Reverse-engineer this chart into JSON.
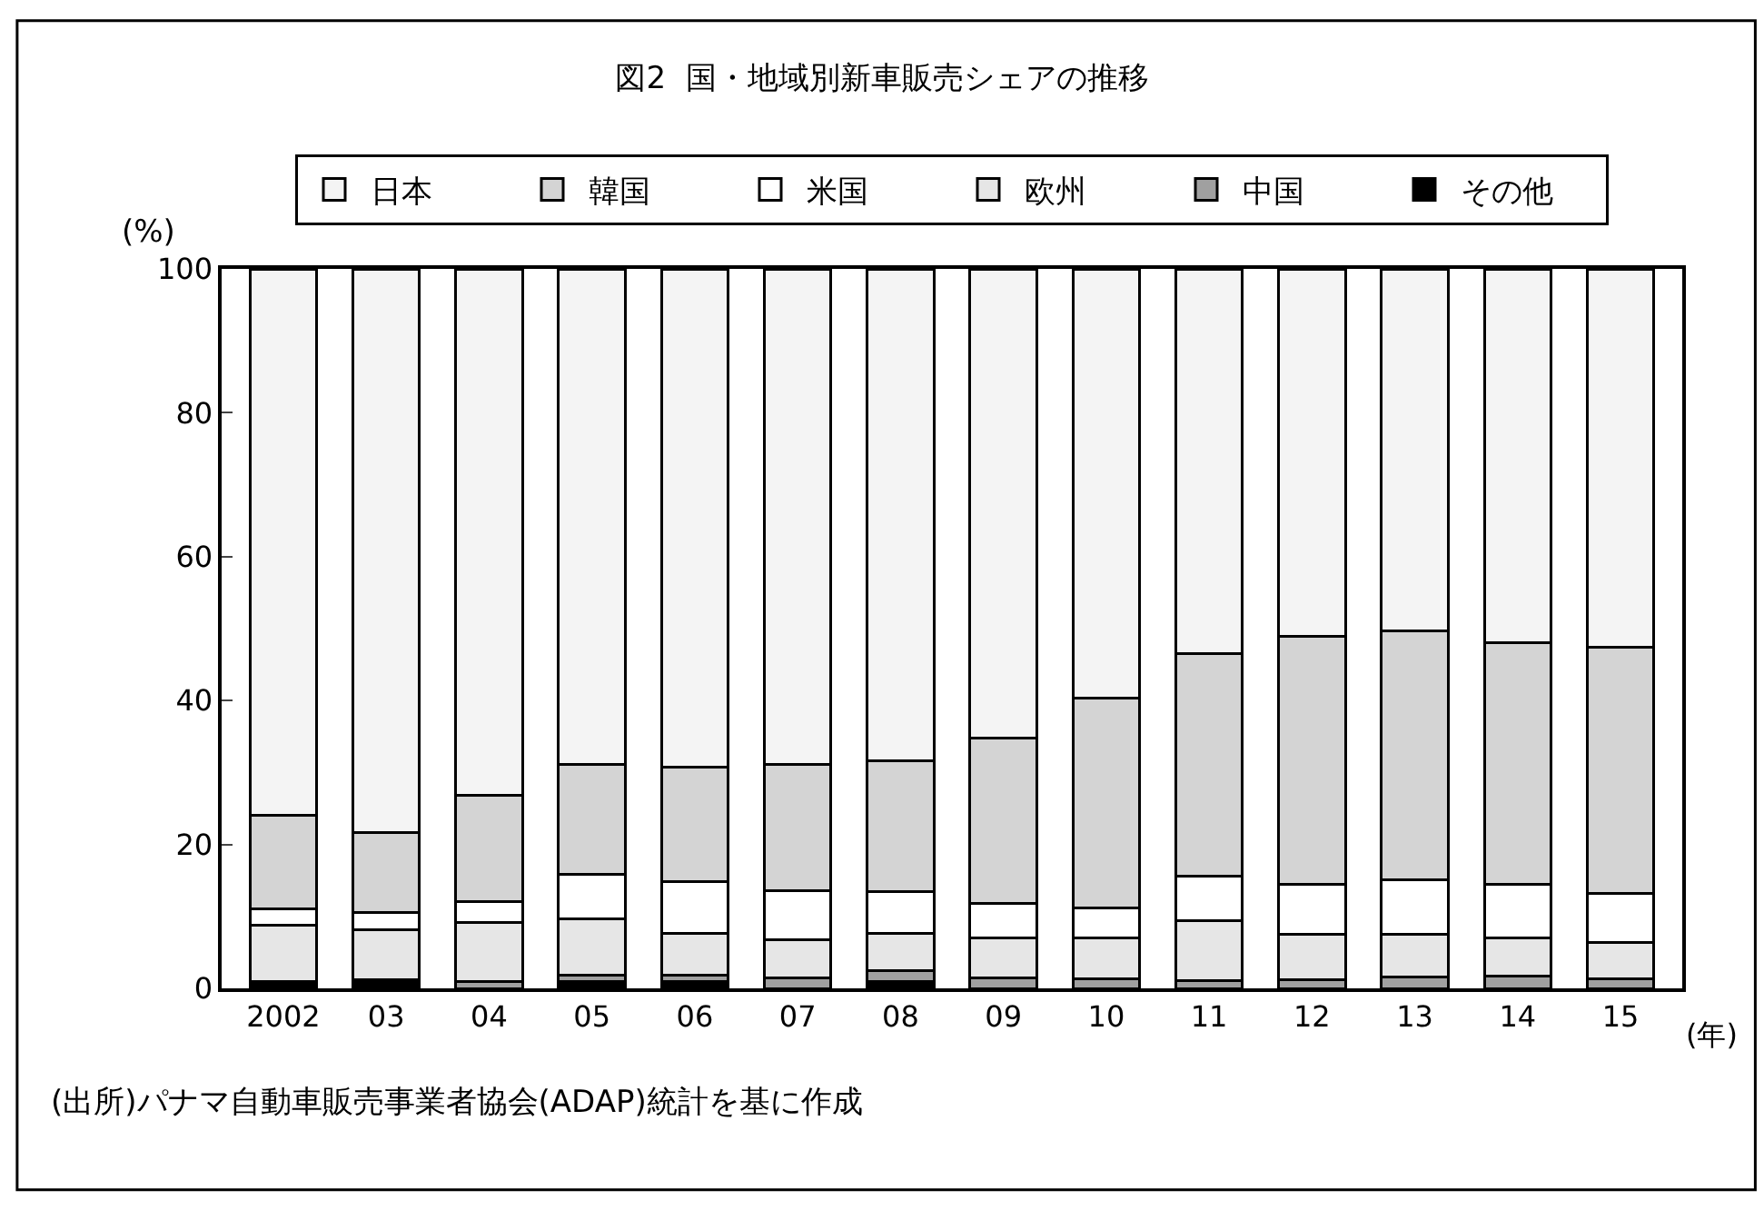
{
  "chart_data": {
    "type": "bar",
    "stacked": true,
    "title": "図2  国・地域別新車販売シェアの推移",
    "ylabel": "(%)",
    "categories": [
      "2002",
      "03",
      "04",
      "05",
      "06",
      "07",
      "08",
      "09",
      "10",
      "11",
      "12",
      "13",
      "14",
      "15"
    ],
    "series": [
      {
        "name": "その他",
        "color": "#000000",
        "values": [
          1,
          1.2,
          0,
          1,
          1,
          0,
          1,
          0,
          0,
          0,
          0,
          0,
          0,
          0
        ]
      },
      {
        "name": "中国",
        "color": "#a0a0a0",
        "values": [
          0,
          0,
          1,
          0.8,
          0.8,
          1.4,
          1.5,
          1.5,
          1.3,
          1.1,
          1.2,
          1.6,
          1.7,
          1.3
        ]
      },
      {
        "name": "欧州",
        "color": "#e6e6e6",
        "values": [
          7.8,
          7.0,
          8.2,
          7.8,
          5.9,
          5.4,
          5.2,
          5.5,
          5.7,
          8.3,
          6.3,
          5.9,
          5.3,
          5.1
        ]
      },
      {
        "name": "米国",
        "color": "#ffffff",
        "values": [
          2.3,
          2.4,
          2.9,
          6.3,
          7.2,
          6.8,
          5.7,
          4.8,
          4.2,
          6.2,
          7.0,
          7.6,
          7.5,
          6.8
        ]
      },
      {
        "name": "韓国",
        "color": "#d4d4d4",
        "values": [
          12.9,
          11.1,
          14.7,
          15.2,
          15.8,
          17.5,
          18.2,
          23.0,
          29.2,
          30.9,
          34.4,
          34.6,
          33.5,
          34.2
        ]
      },
      {
        "name": "日本",
        "color": "#f4f4f4",
        "values": [
          76.0,
          78.3,
          73.2,
          68.9,
          69.3,
          68.9,
          68.4,
          65.2,
          59.6,
          53.5,
          51.1,
          50.3,
          52.0,
          52.6
        ]
      }
    ],
    "ylim": [
      0,
      100
    ],
    "yticks": [
      0,
      20,
      40,
      60,
      80,
      100
    ],
    "legend": "top",
    "annotations": [
      "(年)",
      "(出所)パナマ自動車販売事業者協会(ADAP)統計を基に作成"
    ]
  }
}
